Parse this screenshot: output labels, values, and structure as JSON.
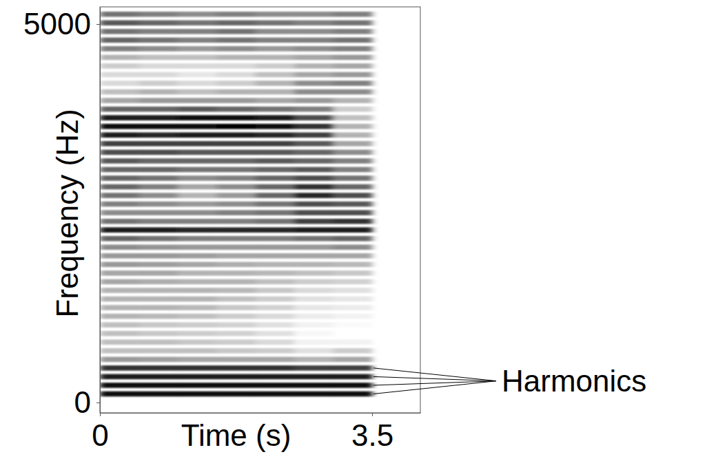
{
  "chart_data": {
    "type": "heatmap",
    "x_label": "Time (s)",
    "y_label": "Frequency (Hz)",
    "xlim": [
      0,
      4.12
    ],
    "ylim": [
      -136,
      5227
    ],
    "xticks": [
      0,
      3.5
    ],
    "yticks": [
      0,
      5000
    ],
    "color": "#000000",
    "zlim": [
      0,
      1
    ],
    "x_edges": [
      0,
      0.5,
      1,
      1.5,
      2,
      2.5,
      3,
      3.5
    ],
    "y": [
      114,
      228,
      342,
      456,
      570,
      684,
      798,
      912,
      1026,
      1140,
      1254,
      1368,
      1482,
      1596,
      1710,
      1824,
      1938,
      2052,
      2166,
      2280,
      2394,
      2508,
      2622,
      2736,
      2850,
      2964,
      3078,
      3192,
      3306,
      3420,
      3534,
      3648,
      3762,
      3876,
      3990,
      4104,
      4218,
      4332,
      4446,
      4560,
      4674,
      4788,
      4902,
      5016,
      5130
    ],
    "cells": [
      [
        0.95,
        0.95,
        0.95,
        0.95,
        0.95,
        0.95,
        0.95
      ],
      [
        0.95,
        0.95,
        0.95,
        0.95,
        0.95,
        0.95,
        0.95
      ],
      [
        0.9,
        0.9,
        0.9,
        0.9,
        0.9,
        0.9,
        0.9
      ],
      [
        0.8,
        0.8,
        0.8,
        0.8,
        0.8,
        0.75,
        0.75
      ],
      [
        0.4,
        0.38,
        0.35,
        0.35,
        0.35,
        0.3,
        0.35
      ],
      [
        0.25,
        0.25,
        0.25,
        0.22,
        0.2,
        0.12,
        0.2
      ],
      [
        0.25,
        0.25,
        0.22,
        0.2,
        0.15,
        0.05,
        0.05
      ],
      [
        0.25,
        0.22,
        0.2,
        0.18,
        0.12,
        0.03,
        0
      ],
      [
        0.25,
        0.22,
        0.2,
        0.18,
        0.12,
        0.05,
        0.02
      ],
      [
        0.3,
        0.28,
        0.25,
        0.2,
        0.15,
        0.08,
        0.05
      ],
      [
        0.3,
        0.3,
        0.28,
        0.22,
        0.18,
        0.1,
        0.08
      ],
      [
        0.3,
        0.3,
        0.3,
        0.25,
        0.2,
        0.12,
        0.1
      ],
      [
        0.3,
        0.3,
        0.3,
        0.28,
        0.22,
        0.15,
        0.12
      ],
      [
        0.35,
        0.32,
        0.3,
        0.3,
        0.25,
        0.2,
        0.18
      ],
      [
        0.35,
        0.35,
        0.3,
        0.3,
        0.28,
        0.25,
        0.22
      ],
      [
        0.4,
        0.38,
        0.35,
        0.32,
        0.3,
        0.3,
        0.28
      ],
      [
        0.4,
        0.4,
        0.38,
        0.35,
        0.35,
        0.35,
        0.35
      ],
      [
        0.45,
        0.42,
        0.4,
        0.4,
        0.4,
        0.4,
        0.45
      ],
      [
        0.6,
        0.55,
        0.5,
        0.5,
        0.5,
        0.55,
        0.6
      ],
      [
        0.9,
        0.9,
        0.85,
        0.85,
        0.85,
        0.9,
        0.9
      ],
      [
        0.55,
        0.5,
        0.5,
        0.5,
        0.55,
        0.75,
        0.8
      ],
      [
        0.45,
        0.45,
        0.45,
        0.5,
        0.55,
        0.7,
        0.7
      ],
      [
        0.5,
        0.45,
        0.4,
        0.45,
        0.55,
        0.7,
        0.65
      ],
      [
        0.55,
        0.45,
        0.3,
        0.4,
        0.6,
        0.85,
        0.7
      ],
      [
        0.6,
        0.5,
        0.35,
        0.45,
        0.6,
        0.8,
        0.6
      ],
      [
        0.6,
        0.55,
        0.45,
        0.5,
        0.6,
        0.7,
        0.55
      ],
      [
        0.6,
        0.6,
        0.55,
        0.55,
        0.6,
        0.65,
        0.5
      ],
      [
        0.65,
        0.6,
        0.6,
        0.6,
        0.65,
        0.6,
        0.5
      ],
      [
        0.7,
        0.7,
        0.65,
        0.65,
        0.65,
        0.6,
        0.45
      ],
      [
        0.75,
        0.75,
        0.75,
        0.75,
        0.75,
        0.65,
        0.35
      ],
      [
        0.9,
        0.85,
        0.9,
        0.9,
        0.85,
        0.75,
        0.3
      ],
      [
        0.95,
        0.95,
        0.95,
        1,
        0.95,
        0.8,
        0.3
      ],
      [
        0.9,
        0.9,
        0.95,
        0.95,
        0.9,
        0.7,
        0.25
      ],
      [
        0.6,
        0.6,
        0.65,
        0.6,
        0.55,
        0.5,
        0.2
      ],
      [
        0.35,
        0.4,
        0.4,
        0.4,
        0.35,
        0.4,
        0.3
      ],
      [
        0.25,
        0.3,
        0.25,
        0.3,
        0.3,
        0.45,
        0.45
      ],
      [
        0.15,
        0.2,
        0.15,
        0.2,
        0.3,
        0.45,
        0.5
      ],
      [
        0.15,
        0.15,
        0.1,
        0.15,
        0.25,
        0.35,
        0.4
      ],
      [
        0.2,
        0.15,
        0.15,
        0.15,
        0.2,
        0.3,
        0.35
      ],
      [
        0.3,
        0.25,
        0.25,
        0.3,
        0.3,
        0.35,
        0.4
      ],
      [
        0.5,
        0.45,
        0.4,
        0.45,
        0.4,
        0.45,
        0.5
      ],
      [
        0.6,
        0.55,
        0.5,
        0.55,
        0.5,
        0.5,
        0.55
      ],
      [
        0.55,
        0.5,
        0.5,
        0.55,
        0.45,
        0.45,
        0.5
      ],
      [
        0.65,
        0.6,
        0.55,
        0.6,
        0.55,
        0.5,
        0.55
      ],
      [
        0.55,
        0.5,
        0.45,
        0.5,
        0.45,
        0.45,
        0.5
      ]
    ],
    "annotation": {
      "text": "Harmonics",
      "points": [
        114,
        228,
        342,
        456
      ]
    }
  }
}
